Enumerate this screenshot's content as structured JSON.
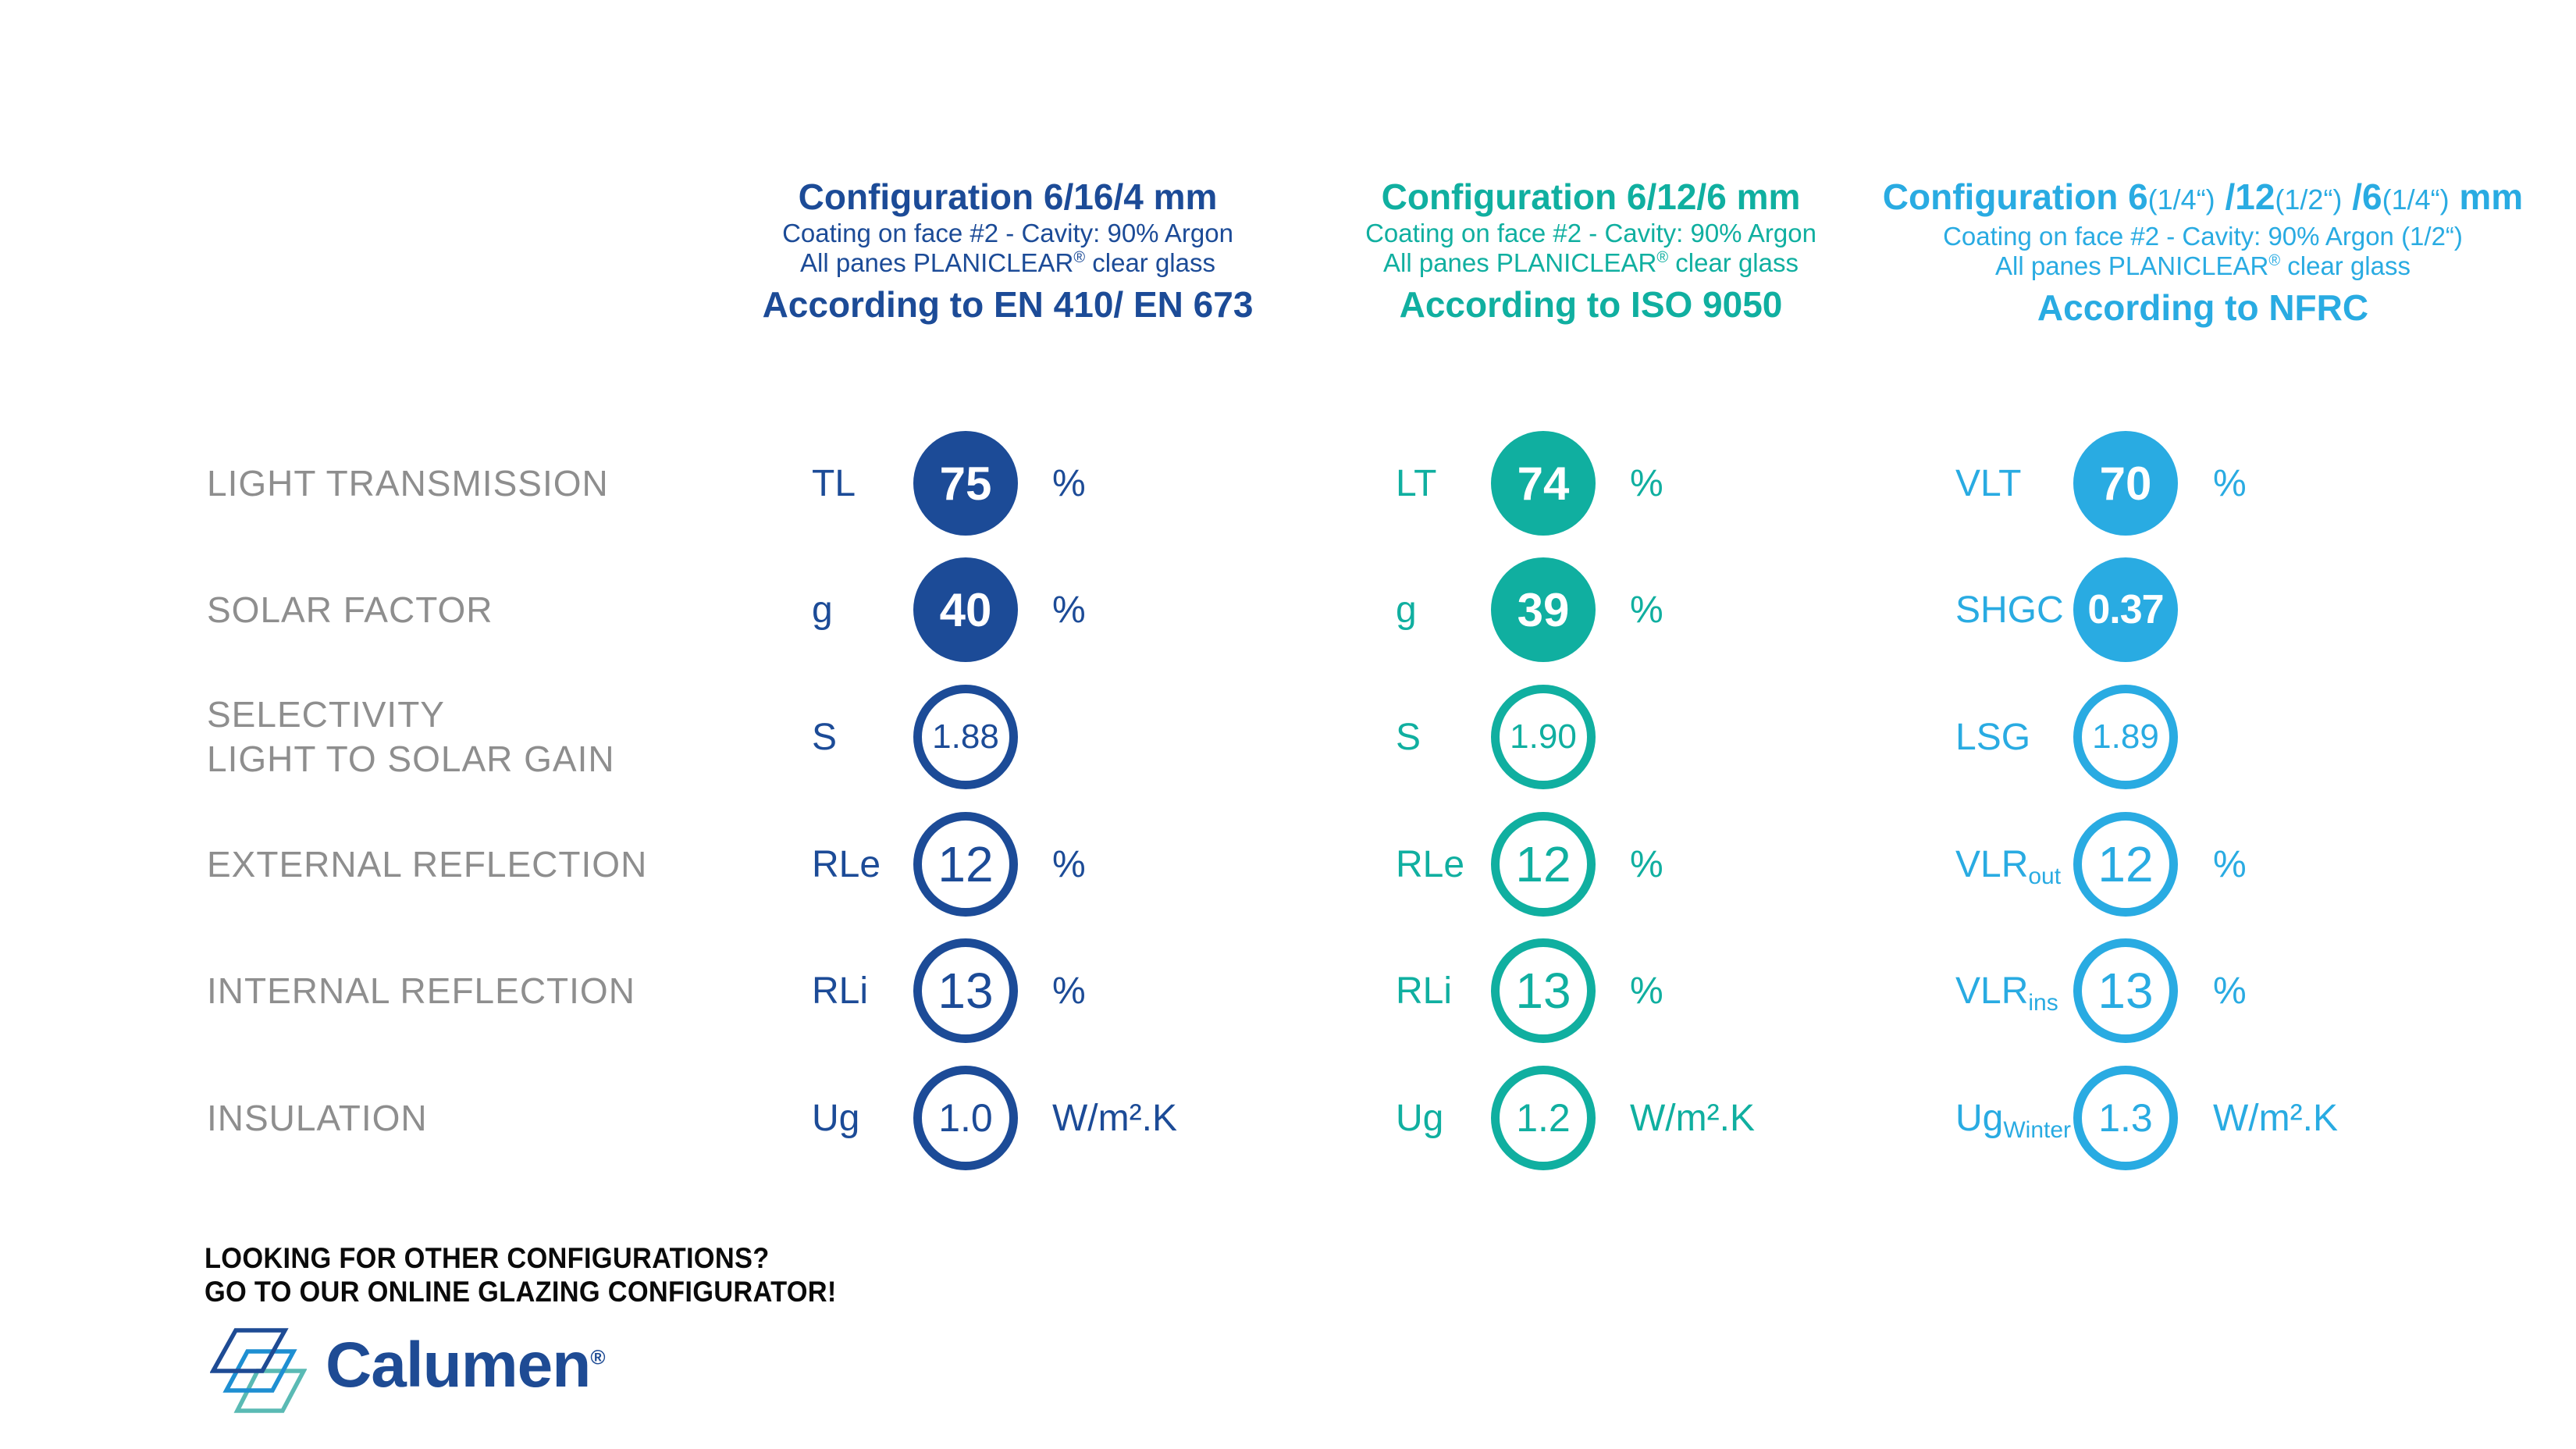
{
  "page": {
    "background": "#FFFFFF"
  },
  "row_labels": [
    {
      "lines": [
        "LIGHT TRANSMISSION"
      ]
    },
    {
      "lines": [
        "SOLAR FACTOR"
      ]
    },
    {
      "lines": [
        "SELECTIVITY",
        "LIGHT TO SOLAR GAIN"
      ]
    },
    {
      "lines": [
        "EXTERNAL REFLECTION"
      ]
    },
    {
      "lines": [
        "INTERNAL REFLECTION"
      ]
    },
    {
      "lines": [
        "INSULATION"
      ]
    }
  ],
  "columns": [
    {
      "id": "en",
      "accent": "#1C4B97",
      "header": {
        "title_parts": [
          {
            "t": "Configuration 6/16/4 mm",
            "s": "big"
          }
        ],
        "coating_line": "Coating on face #2 - Cavity: 90% Argon",
        "panes_pre": "All panes PLANICLEAR",
        "panes_sup": "®",
        "panes_post": " clear glass",
        "accordance": "According to EN 410/ EN 673"
      },
      "rows": [
        {
          "symbol": "TL",
          "sub": "",
          "value": "75",
          "unit": "%",
          "filled": true
        },
        {
          "symbol": "g",
          "sub": "",
          "value": "40",
          "unit": "%",
          "filled": true
        },
        {
          "symbol": "S",
          "sub": "",
          "value": "1.88",
          "unit": "",
          "filled": false
        },
        {
          "symbol": "RLe",
          "sub": "",
          "value": "12",
          "unit": "%",
          "filled": false
        },
        {
          "symbol": "RLi",
          "sub": "",
          "value": "13",
          "unit": "%",
          "filled": false
        },
        {
          "symbol": "Ug",
          "sub": "",
          "value": "1.0",
          "unit": "W/m².K",
          "filled": false
        }
      ]
    },
    {
      "id": "iso",
      "accent": "#10AFA0",
      "header": {
        "title_parts": [
          {
            "t": "Configuration 6/12/6 mm",
            "s": "big"
          }
        ],
        "coating_line": "Coating on face #2 - Cavity: 90% Argon",
        "panes_pre": "All panes PLANICLEAR",
        "panes_sup": "®",
        "panes_post": " clear glass",
        "accordance": "According to ISO 9050"
      },
      "rows": [
        {
          "symbol": "LT",
          "sub": "",
          "value": "74",
          "unit": "%",
          "filled": true
        },
        {
          "symbol": "g",
          "sub": "",
          "value": "39",
          "unit": "%",
          "filled": true
        },
        {
          "symbol": "S",
          "sub": "",
          "value": "1.90",
          "unit": "",
          "filled": false
        },
        {
          "symbol": "RLe",
          "sub": "",
          "value": "12",
          "unit": "%",
          "filled": false
        },
        {
          "symbol": "RLi",
          "sub": "",
          "value": "13",
          "unit": "%",
          "filled": false
        },
        {
          "symbol": "Ug",
          "sub": "",
          "value": "1.2",
          "unit": "W/m².K",
          "filled": false
        }
      ]
    },
    {
      "id": "nfrc",
      "accent": "#29ABE2",
      "header": {
        "title_parts": [
          {
            "t": "Configuration 6",
            "s": "big"
          },
          {
            "t": "(1/4“)",
            "s": "small"
          },
          {
            "t": " /12",
            "s": "big"
          },
          {
            "t": "(1/2“)",
            "s": "small"
          },
          {
            "t": " /6",
            "s": "big"
          },
          {
            "t": "(1/4“)",
            "s": "small"
          },
          {
            "t": " mm",
            "s": "big"
          }
        ],
        "coating_line": "Coating on face #2  - Cavity: 90% Argon (1/2“)",
        "panes_pre": "All panes PLANICLEAR",
        "panes_sup": "®",
        "panes_post": " clear glass",
        "accordance": "According to NFRC"
      },
      "rows": [
        {
          "symbol": "VLT",
          "sub": "",
          "value": "70",
          "unit": "%",
          "filled": true
        },
        {
          "symbol": "SHGC",
          "sub": "",
          "value": "0.37",
          "unit": "",
          "filled": true
        },
        {
          "symbol": "LSG",
          "sub": "",
          "value": "1.89",
          "unit": "",
          "filled": false
        },
        {
          "symbol": "VLR",
          "sub": "out",
          "value": "12",
          "unit": "%",
          "filled": false
        },
        {
          "symbol": "VLR",
          "sub": "ins",
          "value": "13",
          "unit": "%",
          "filled": false
        },
        {
          "symbol": "Ug",
          "sub": "Winter",
          "value": "1.3",
          "unit": "W/m².K",
          "filled": false
        }
      ]
    }
  ],
  "footer": {
    "cta_lines": [
      "LOOKING FOR OTHER CONFIGURATIONS?",
      "GO TO OUR ONLINE GLAZING CONFIGURATOR!"
    ],
    "logo": {
      "wordmark": "Calumen",
      "registered": "®",
      "icon": "overlapping-glass-panes-icon",
      "colors": {
        "navy": "#1E4B94",
        "blue": "#1E8FD2",
        "teal": "#5ABAB4"
      }
    }
  }
}
